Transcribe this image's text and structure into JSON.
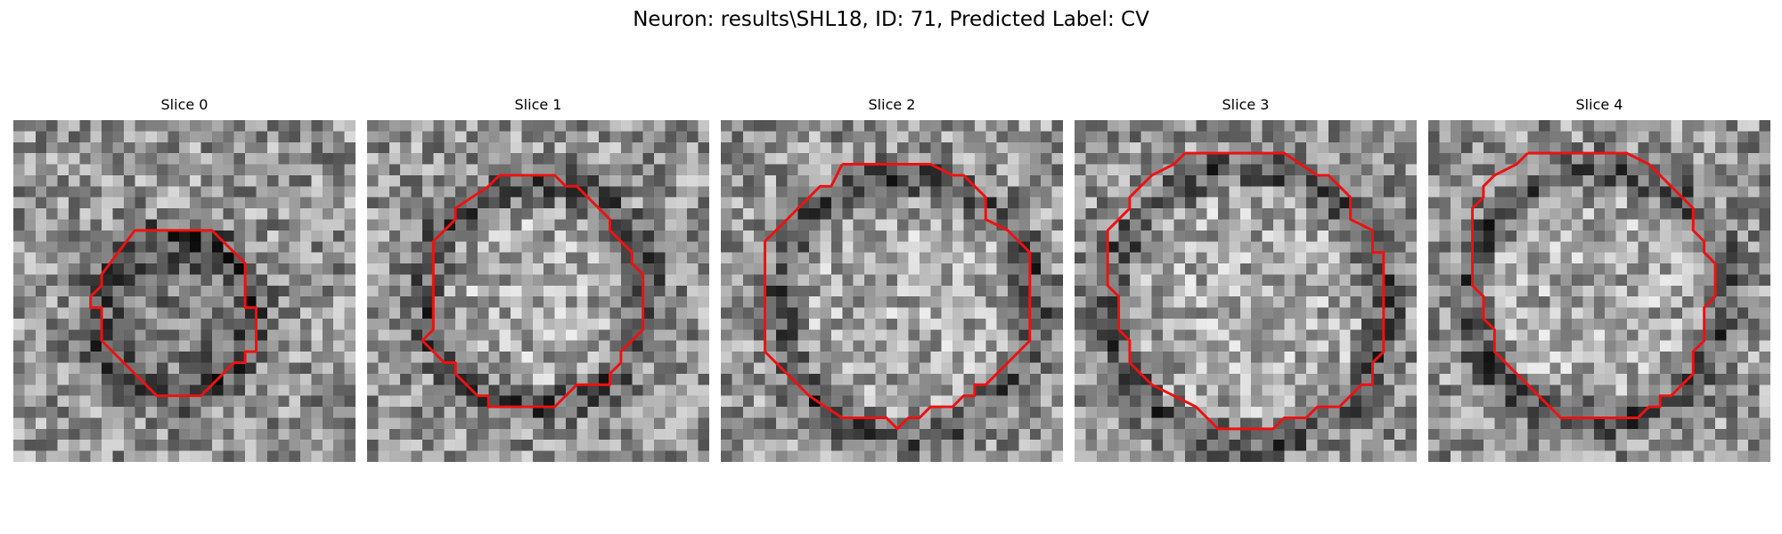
{
  "figure": {
    "suptitle": "Neuron: results\\SHL18, ID: 71, Predicted Label: CV",
    "contour_color": "#ee1111",
    "colormap": "grayscale",
    "grid_size": 31
  },
  "slices": [
    {
      "title": "Slice 0",
      "seed": 11,
      "outline": [
        [
          11,
          10
        ],
        [
          18,
          10
        ],
        [
          21,
          13
        ],
        [
          21,
          17
        ],
        [
          22,
          17
        ],
        [
          22,
          21
        ],
        [
          21,
          21
        ],
        [
          21,
          22
        ],
        [
          20,
          22
        ],
        [
          17,
          25
        ],
        [
          13,
          25
        ],
        [
          12,
          24
        ],
        [
          8,
          20
        ],
        [
          8,
          17
        ],
        [
          7,
          17
        ],
        [
          7,
          16
        ],
        [
          8,
          15
        ],
        [
          8,
          14
        ],
        [
          11,
          10
        ]
      ]
    },
    {
      "title": "Slice 1",
      "seed": 23,
      "outline": [
        [
          12,
          5
        ],
        [
          17,
          5
        ],
        [
          18,
          6
        ],
        [
          19,
          6
        ],
        [
          22,
          9
        ],
        [
          22,
          10
        ],
        [
          24,
          12
        ],
        [
          24,
          13
        ],
        [
          25,
          14
        ],
        [
          25,
          19
        ],
        [
          23,
          21
        ],
        [
          23,
          22
        ],
        [
          22,
          23
        ],
        [
          22,
          24
        ],
        [
          19,
          24
        ],
        [
          17,
          26
        ],
        [
          11,
          26
        ],
        [
          11,
          25
        ],
        [
          10,
          25
        ],
        [
          8,
          23
        ],
        [
          8,
          22
        ],
        [
          7,
          22
        ],
        [
          5,
          20
        ],
        [
          6,
          19
        ],
        [
          6,
          11
        ],
        [
          8,
          9
        ],
        [
          8,
          8
        ],
        [
          11,
          6
        ],
        [
          12,
          5
        ]
      ]
    },
    {
      "title": "Slice 2",
      "seed": 37,
      "outline": [
        [
          11,
          4
        ],
        [
          19,
          4
        ],
        [
          21,
          5
        ],
        [
          22,
          5
        ],
        [
          24,
          7
        ],
        [
          24,
          9
        ],
        [
          26,
          10
        ],
        [
          27,
          11
        ],
        [
          28,
          12
        ],
        [
          28,
          13
        ],
        [
          28,
          20
        ],
        [
          27,
          21
        ],
        [
          26,
          22
        ],
        [
          25,
          23
        ],
        [
          24,
          24
        ],
        [
          23,
          24
        ],
        [
          23,
          25
        ],
        [
          22,
          25
        ],
        [
          21,
          26
        ],
        [
          19,
          26
        ],
        [
          18,
          27
        ],
        [
          17,
          27
        ],
        [
          16,
          28
        ],
        [
          15,
          27
        ],
        [
          14,
          27
        ],
        [
          11,
          27
        ],
        [
          8,
          25
        ],
        [
          7,
          24
        ],
        [
          6,
          23
        ],
        [
          5,
          22
        ],
        [
          4,
          21
        ],
        [
          4,
          11
        ],
        [
          5,
          10
        ],
        [
          7,
          8
        ],
        [
          8,
          7
        ],
        [
          9,
          6
        ],
        [
          10,
          6
        ],
        [
          11,
          4
        ]
      ]
    },
    {
      "title": "Slice 3",
      "seed": 53,
      "outline": [
        [
          10,
          3
        ],
        [
          19,
          3
        ],
        [
          22,
          5
        ],
        [
          23,
          5
        ],
        [
          25,
          7
        ],
        [
          25,
          9
        ],
        [
          27,
          10
        ],
        [
          27,
          12
        ],
        [
          28,
          12
        ],
        [
          28,
          21
        ],
        [
          27,
          22
        ],
        [
          27,
          24
        ],
        [
          26,
          24
        ],
        [
          25,
          25
        ],
        [
          24,
          26
        ],
        [
          22,
          26
        ],
        [
          21,
          27
        ],
        [
          20,
          27
        ],
        [
          19,
          27
        ],
        [
          18,
          28
        ],
        [
          13,
          28
        ],
        [
          12,
          27
        ],
        [
          11,
          26
        ],
        [
          9,
          25
        ],
        [
          7,
          24
        ],
        [
          6,
          23
        ],
        [
          5,
          22
        ],
        [
          5,
          20
        ],
        [
          4,
          19
        ],
        [
          4,
          16
        ],
        [
          3,
          15
        ],
        [
          3,
          10
        ],
        [
          5,
          8
        ],
        [
          5,
          7
        ],
        [
          7,
          5
        ],
        [
          9,
          4
        ],
        [
          10,
          3
        ]
      ]
    },
    {
      "title": "Slice 4",
      "seed": 71,
      "outline": [
        [
          9,
          3
        ],
        [
          18,
          3
        ],
        [
          20,
          4
        ],
        [
          21,
          5
        ],
        [
          22,
          6
        ],
        [
          24,
          8
        ],
        [
          24,
          10
        ],
        [
          25,
          11
        ],
        [
          25,
          12
        ],
        [
          26,
          13
        ],
        [
          26,
          16
        ],
        [
          25,
          17
        ],
        [
          25,
          20
        ],
        [
          24,
          21
        ],
        [
          24,
          23
        ],
        [
          23,
          24
        ],
        [
          22,
          25
        ],
        [
          21,
          25
        ],
        [
          21,
          26
        ],
        [
          20,
          26
        ],
        [
          19,
          27
        ],
        [
          16,
          27
        ],
        [
          12,
          27
        ],
        [
          11,
          26
        ],
        [
          10,
          25
        ],
        [
          9,
          24
        ],
        [
          8,
          23
        ],
        [
          7,
          22
        ],
        [
          6,
          21
        ],
        [
          6,
          19
        ],
        [
          5,
          18
        ],
        [
          5,
          16
        ],
        [
          4,
          15
        ],
        [
          4,
          8
        ],
        [
          5,
          7
        ],
        [
          5,
          6
        ],
        [
          6,
          5
        ],
        [
          8,
          4
        ],
        [
          9,
          3
        ]
      ]
    }
  ]
}
